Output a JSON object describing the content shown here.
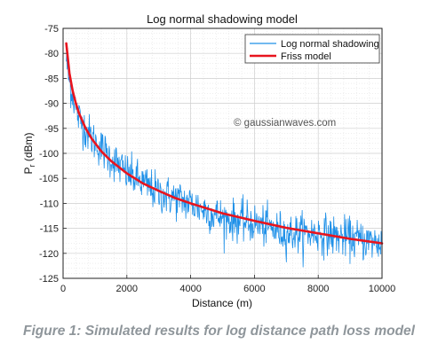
{
  "chart_data": {
    "type": "line",
    "title": "Log normal shadowing model",
    "xlabel": "Distance (m)",
    "ylabel_main": "P",
    "ylabel_sub": "r",
    "ylabel_unit": " (dBm)",
    "xlim": [
      0,
      10000
    ],
    "ylim": [
      -125,
      -75
    ],
    "xticks": [
      0,
      2000,
      4000,
      6000,
      8000,
      10000
    ],
    "yticks": [
      -125,
      -120,
      -115,
      -110,
      -105,
      -100,
      -95,
      -90,
      -85,
      -80,
      -75
    ],
    "grid": true,
    "legend_position": "top-right",
    "watermark": "© gaussianwaves.com",
    "series": [
      {
        "name": "Log normal shadowing",
        "color": "#1e90e8",
        "x": [
          100,
          200,
          300,
          400,
          500,
          700,
          900,
          1200,
          1500,
          2000,
          2500,
          3000,
          3500,
          4000,
          5000,
          6000,
          7000,
          8000,
          9000,
          10000
        ],
        "y": [
          -81,
          -86,
          -88,
          -91,
          -93,
          -95,
          -97,
          -99,
          -101,
          -104,
          -106,
          -108,
          -109,
          -110,
          -113,
          -114,
          -116,
          -116,
          -117,
          -118
        ],
        "noise_std_db": 2
      },
      {
        "name": "Friss model",
        "color": "#e8141e",
        "x": [
          100,
          200,
          300,
          400,
          500,
          700,
          900,
          1200,
          1500,
          2000,
          2500,
          3000,
          3500,
          4000,
          5000,
          6000,
          7000,
          8000,
          9000,
          10000
        ],
        "y": [
          -78.0,
          -84.0,
          -87.5,
          -90.0,
          -92.0,
          -94.9,
          -97.1,
          -99.6,
          -101.5,
          -104.0,
          -106.0,
          -107.5,
          -108.9,
          -110.0,
          -112.0,
          -113.5,
          -114.9,
          -116.0,
          -117.1,
          -118.0
        ]
      }
    ]
  },
  "caption": "Figure 1: Simulated results for log distance path loss model"
}
